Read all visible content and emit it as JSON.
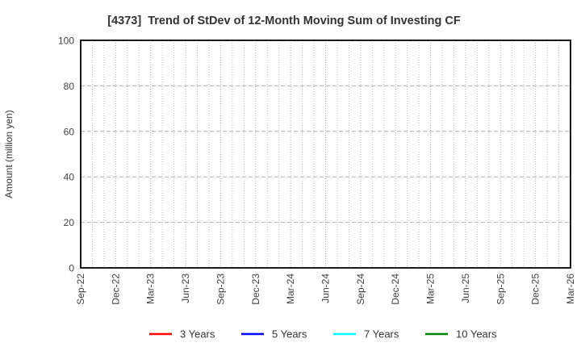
{
  "chart_data": {
    "type": "line",
    "title": "[4373]  Trend of StDev of 12-Month Moving Sum of Investing CF",
    "ylabel": "Amount (million yen)",
    "xlabel": "",
    "ylim": [
      0,
      100
    ],
    "yticks": [
      0,
      20,
      40,
      60,
      80,
      100
    ],
    "x_tick_labels": [
      "Sep-22",
      "Dec-22",
      "Mar-23",
      "Jun-23",
      "Sep-23",
      "Dec-23",
      "Mar-24",
      "Jun-24",
      "Sep-24",
      "Dec-24",
      "Mar-25",
      "Jun-25",
      "Sep-25",
      "Dec-25",
      "Mar-26"
    ],
    "months_between_ticks": 3,
    "grid": true,
    "grid_style": "dotted-monthly-vertical, dashed-horizontal-majors",
    "legend_position": "bottom",
    "no_data_plotted": true,
    "series": [
      {
        "name": "3 Years",
        "color": "#ff0000",
        "values": []
      },
      {
        "name": "5 Years",
        "color": "#0000ff",
        "values": []
      },
      {
        "name": "7 Years",
        "color": "#00ffff",
        "values": []
      },
      {
        "name": "10 Years",
        "color": "#008000",
        "values": []
      }
    ]
  },
  "style_colors": {
    "plot_border": "#000000",
    "grid_minor": "#bdbdbd",
    "grid_major": "#b0b0b0",
    "title_text": "#333333",
    "tick_text": "#404040"
  }
}
